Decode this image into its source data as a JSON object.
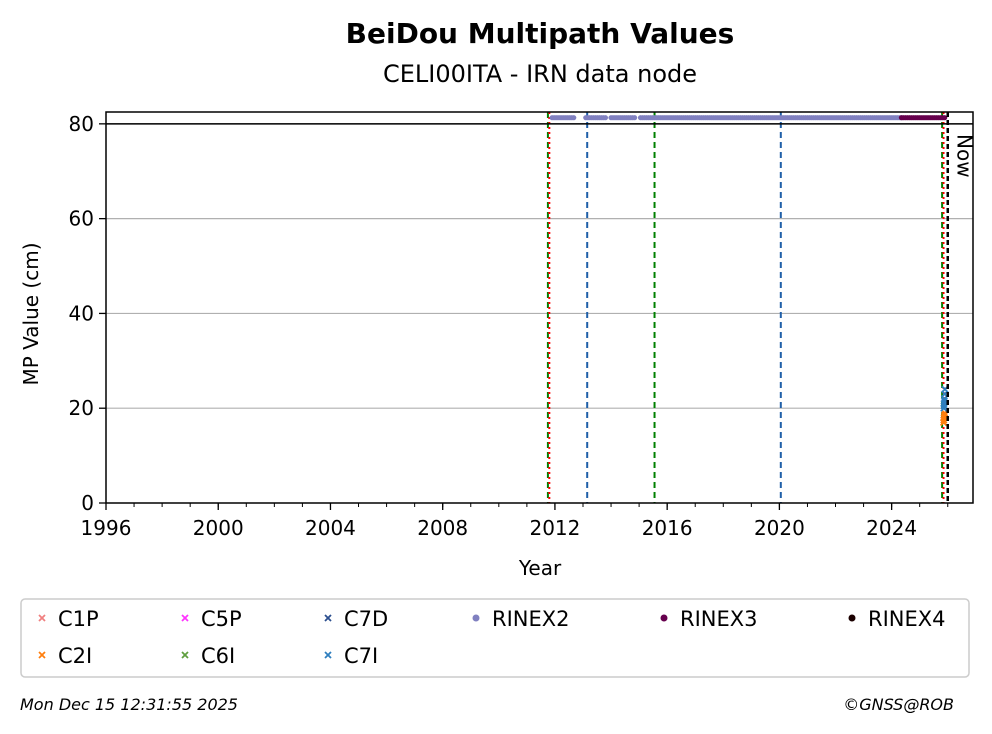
{
  "chart_data": {
    "type": "scatter",
    "title": "BeiDou Multipath Values",
    "subtitle": "CELI00ITA - IRN data node",
    "xlabel": "Year",
    "ylabel": "MP Value (cm)",
    "xlim": [
      1996,
      2026.9
    ],
    "ylim": [
      0,
      82.5
    ],
    "x_ticks": [
      "1996",
      "2000",
      "2004",
      "2008",
      "2012",
      "2016",
      "2020",
      "2024"
    ],
    "y_ticks": [
      "0",
      "20",
      "40",
      "60",
      "80"
    ],
    "grid": "y-major",
    "legend_placement": "below",
    "reference_line_y": 80,
    "now_label": "Now",
    "now_x": 2026.0,
    "vlines": [
      {
        "x": 2011.75,
        "color": "#008000",
        "style": "dashed"
      },
      {
        "x": 2011.8,
        "color": "#ff0000",
        "style": "dotted"
      },
      {
        "x": 2013.15,
        "color": "#1f5fa8",
        "style": "dashed"
      },
      {
        "x": 2015.55,
        "color": "#008000",
        "style": "dashed"
      },
      {
        "x": 2020.05,
        "color": "#1f5fa8",
        "style": "dashed"
      },
      {
        "x": 2025.8,
        "color": "#008000",
        "style": "dashed"
      },
      {
        "x": 2025.85,
        "color": "#ff0000",
        "style": "dotted"
      }
    ],
    "series": [
      {
        "name": "C1P",
        "marker": "x",
        "color": "#f08080",
        "points": []
      },
      {
        "name": "C2I",
        "marker": "x",
        "color": "#ff7f0e",
        "points": [
          [
            2025.85,
            17
          ],
          [
            2025.87,
            18
          ],
          [
            2025.89,
            19
          ],
          [
            2025.86,
            17.5
          ],
          [
            2025.88,
            18.5
          ]
        ]
      },
      {
        "name": "C5P",
        "marker": "x",
        "color": "#ff33ff",
        "points": []
      },
      {
        "name": "C6I",
        "marker": "x",
        "color": "#5f9f3f",
        "points": []
      },
      {
        "name": "C7D",
        "marker": "x",
        "color": "#2c4f8f",
        "points": []
      },
      {
        "name": "C7I",
        "marker": "x",
        "color": "#2f7fbf",
        "points": [
          [
            2025.86,
            20
          ],
          [
            2025.87,
            21
          ],
          [
            2025.88,
            22
          ],
          [
            2025.89,
            23
          ],
          [
            2025.9,
            24
          ],
          [
            2025.87,
            20.5
          ],
          [
            2025.88,
            21.5
          ]
        ]
      },
      {
        "name": "RINEX2",
        "marker": "o",
        "color": "#8080c0",
        "ranges": [
          [
            2011.9,
            2012.7
          ],
          [
            2013.1,
            2013.85
          ],
          [
            2014.0,
            2014.9
          ],
          [
            2015.05,
            2024.4
          ]
        ],
        "y": 81.3
      },
      {
        "name": "RINEX3",
        "marker": "o",
        "color": "#66004d",
        "ranges": [
          [
            2024.35,
            2025.9
          ]
        ],
        "y": 81.3
      },
      {
        "name": "RINEX4",
        "marker": "o",
        "color": "#1a0000",
        "points": []
      }
    ]
  },
  "footer": {
    "timestamp": "Mon Dec 15 12:31:55 2025",
    "credit": "©GNSS@ROB"
  }
}
